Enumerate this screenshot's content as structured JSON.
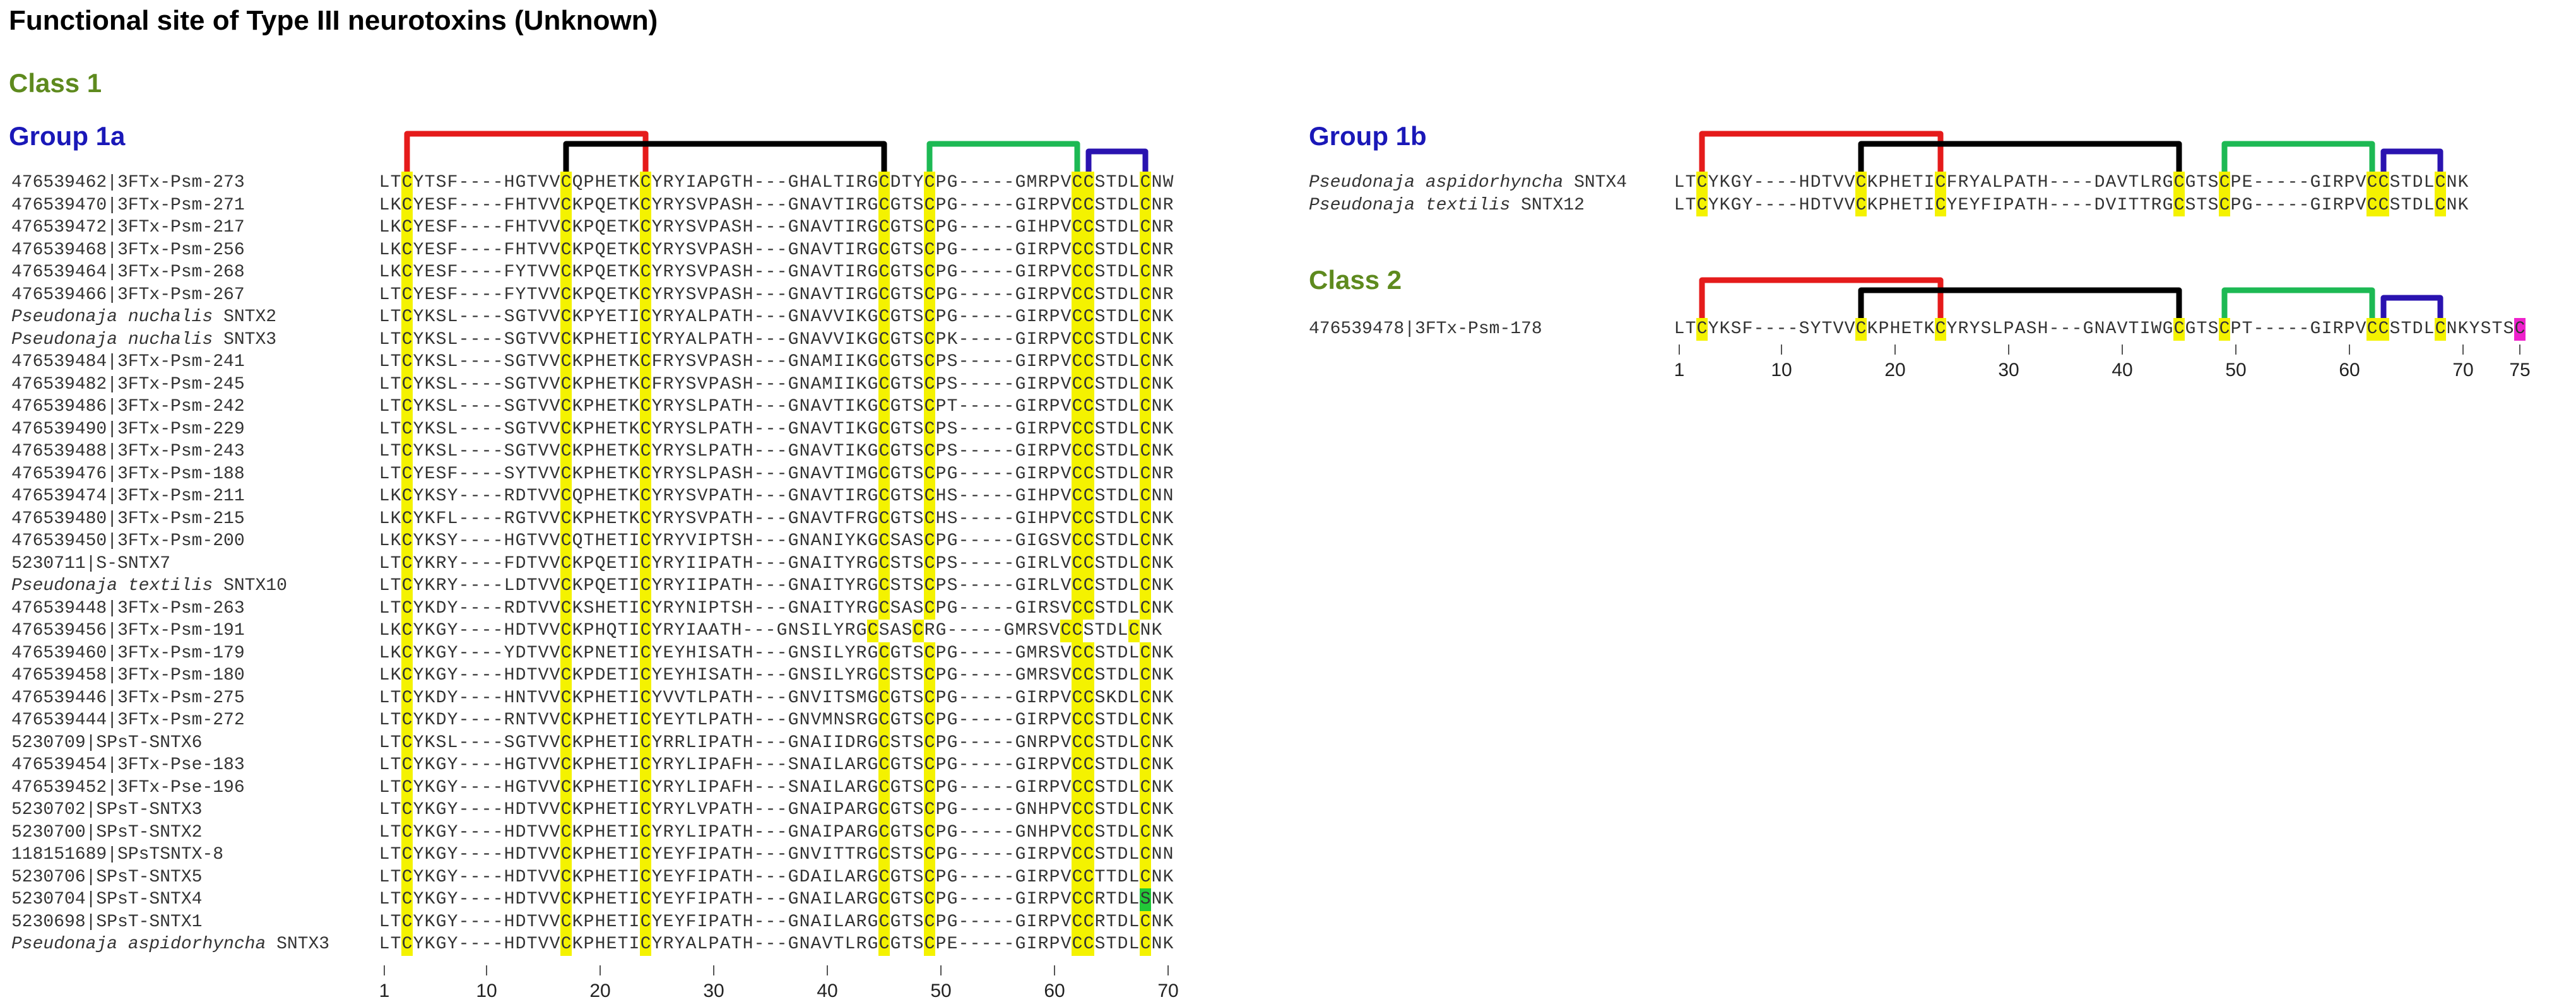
{
  "title": "Functional site of Type III neurotoxins (Unknown)",
  "class1_label": "Class 1",
  "class2_label": "Class 2",
  "group1a": {
    "label": "Group 1a",
    "rows": [
      {
        "id": "476539462|3FTx-Psm-273",
        "seq": "LTCYTSF----HGTVVCQPHETKCYRYIAPGTH---GHALTIRGCDTYCPG-----GMRPVCCSTDLCNW"
      },
      {
        "id": "476539470|3FTx-Psm-271",
        "seq": "LKCYESF----FHTVVCKPQETKCYRYSVPASH---GNAVTIRGCGTSCPG-----GIRPVCCSTDLCNR"
      },
      {
        "id": "476539472|3FTx-Psm-217",
        "seq": "LKCYESF----FHTVVCKPQETKCYRYSVPASH---GNAVTIRGCGTSCPG-----GIHPVCCSTDLCNR"
      },
      {
        "id": "476539468|3FTx-Psm-256",
        "seq": "LKCYESF----FHTVVCKPQETKCYRYSVPASH---GNAVTIRGCGTSCPG-----GIRPVCCSTDLCNR"
      },
      {
        "id": "476539464|3FTx-Psm-268",
        "seq": "LKCYESF----FYTVVCKPQETKCYRYSVPASH---GNAVTIRGCGTSCPG-----GIRPVCCSTDLCNR"
      },
      {
        "id": "476539466|3FTx-Psm-267",
        "seq": "LTCYESF----FYTVVCKPQETKCYRYSVPASH---GNAVTIRGCGTSCPG-----GIRPVCCSTDLCNR"
      },
      {
        "id": "Pseudonaja nuchalis SNTX2",
        "italic": "Pseudonaja nuchalis",
        "suffix": " SNTX2",
        "seq": "LTCYKSL----SGTVVCKPYETICYRYALPATH---GNAVVIKGCGTSCPG-----GIRPVCCSTDLCNK"
      },
      {
        "id": "Pseudonaja nuchalis SNTX3",
        "italic": "Pseudonaja nuchalis",
        "suffix": " SNTX3",
        "seq": "LTCYKSL----SGTVVCKPHETICYRYALPATH---GNAVVIKGCGTSCPK-----GIRPVCCSTDLCNK"
      },
      {
        "id": "476539484|3FTx-Psm-241",
        "seq": "LTCYKSL----SGTVVCKPHETKCFRYSVPASH---GNAMIIKGCGTSCPS-----GIRPVCCSTDLCNK"
      },
      {
        "id": "476539482|3FTx-Psm-245",
        "seq": "LTCYKSL----SGTVVCKPHETKCFRYSVPASH---GNAMIIKGCGTSCPS-----GIRPVCCSTDLCNK"
      },
      {
        "id": "476539486|3FTx-Psm-242",
        "seq": "LTCYKSL----SGTVVCKPHETKCYRYSLPATH---GNAVTIKGCGTSCPT-----GIRPVCCSTDLCNK"
      },
      {
        "id": "476539490|3FTx-Psm-229",
        "seq": "LTCYKSL----SGTVVCKPHETKCYRYSLPATH---GNAVTIKGCGTSCPS-----GIRPVCCSTDLCNK"
      },
      {
        "id": "476539488|3FTx-Psm-243",
        "seq": "LTCYKSL----SGTVVCKPHETKCYRYSLPATH---GNAVTIKGCGTSCPS-----GIRPVCCSTDLCNK"
      },
      {
        "id": "476539476|3FTx-Psm-188",
        "seq": "LTCYESF----SYTVVCKPHETKCYRYSLPASH---GNAVTIMGCGTSCPG-----GIRPVCCSTDLCNR"
      },
      {
        "id": "476539474|3FTx-Psm-211",
        "seq": "LKCYKSY----RDTVVCQPHETKCYRYSVPATH---GNAVTIRGCGTSCHS-----GIHPVCCSTDLCNN"
      },
      {
        "id": "476539480|3FTx-Psm-215",
        "seq": "LKCYKFL----RGTVVCKPHETKCYRYSVPATH---GNAVTFRGCGTSCHS-----GIHPVCCSTDLCNK"
      },
      {
        "id": "476539450|3FTx-Psm-200",
        "seq": "LKCYKSY----HGTVVCQTHETICYRYVIPTSH---GNANIYKGCSASCPG-----GIGSVCCSTDLCNK"
      },
      {
        "id": "5230711|S-SNTX7",
        "seq": "LTCYKRY----FDTVVCKPQETICYRYIIPATH---GNAITYRGCSTSCPS-----GIRLVCCSTDLCNK"
      },
      {
        "id": "Pseudonaja textilis SNTX10",
        "italic": "Pseudonaja textilis",
        "suffix": " SNTX10",
        "seq": "LTCYKRY----LDTVVCKPQETICYRYIIPATH---GNAITYRGCSTSCPS-----GIRLVCCSTDLCNK"
      },
      {
        "id": "476539448|3FTx-Psm-263",
        "seq": "LTCYKDY----RDTVVCKSHETICYRYNIPTSH---GNAITYRGCSASCPG-----GIRSVCCSTDLCNK"
      },
      {
        "id": "476539456|3FTx-Psm-191",
        "seq": "LKCYKGY----HDTVVCKPHQTICYRYIAATH---GNSILYRGCSASCRG-----GMRSVCCSTDLCNK"
      },
      {
        "id": "476539460|3FTx-Psm-179",
        "seq": "LKCYKGY----YDTVVCKPNETICYEYHISATH---GNSILYRGCGTSCPG-----GMRSVCCSTDLCNK"
      },
      {
        "id": "476539458|3FTx-Psm-180",
        "seq": "LKCYKGY----HDTVVCKPDETICYEYHISATH---GNSILYRGCSTSCPG-----GMRSVCCSTDLCNK"
      },
      {
        "id": "476539446|3FTx-Psm-275",
        "seq": "LTCYKDY----HNTVVCKPHETICYVVTLPATH---GNVITSMGCGTSCPG-----GIRPVCCSKDLCNK"
      },
      {
        "id": "476539444|3FTx-Psm-272",
        "seq": "LTCYKDY----RNTVVCKPHETICYEYTLPATH---GNVMNSRGCGTSCPG-----GIRPVCCSTDLCNK"
      },
      {
        "id": "5230709|SPsT-SNTX6",
        "seq": "LTCYKSL----SGTVVCKPHETICYRRLIPATH---GNAIIDRGCSTSCPG-----GNRPVCCSTDLCNK"
      },
      {
        "id": "476539454|3FTx-Pse-183",
        "seq": "LTCYKGY----HGTVVCKPHETICYRYLIPAFH---SNAILARGCGTSCPG-----GIRPVCCSTDLCNK"
      },
      {
        "id": "476539452|3FTx-Pse-196",
        "seq": "LTCYKGY----HGTVVCKPHETICYRYLIPAFH---SNAILARGCGTSCPG-----GIRPVCCSTDLCNK"
      },
      {
        "id": "5230702|SPsT-SNTX3",
        "seq": "LTCYKGY----HDTVVCKPHETICYRYLVPATH---GNAIPARGCGTSCPG-----GNHPVCCSTDLCNK"
      },
      {
        "id": "5230700|SPsT-SNTX2",
        "seq": "LTCYKGY----HDTVVCKPHETICYRYLIPATH---GNAIPARGCGTSCPG-----GNHPVCCSTDLCNK"
      },
      {
        "id": "118151689|SPsTSNTX-8",
        "seq": "LTCYKGY----HDTVVCKPHETICYEYFIPATH---GNVITTRGCSTSCPG-----GIRPVCCSTDLCNN"
      },
      {
        "id": "5230706|SPsT-SNTX5",
        "seq": "LTCYKGY----HDTVVCKPHETICYEYFIPATH---GDAILARGCGTSCPG-----GIRPVCCTTDLCNK"
      },
      {
        "id": "5230704|SPsT-SNTX4",
        "seq": "LTCYKGY----HDTVVCKPHETICYEYFIPATH---GNAILARGCGTSCPG-----GIRPVCCRTDLSNK",
        "green": [
          67
        ]
      },
      {
        "id": "5230698|SPsT-SNTX1",
        "seq": "LTCYKGY----HDTVVCKPHETICYEYFIPATH---GNAILARGCGTSCPG-----GIRPVCCRTDLCNK"
      },
      {
        "id": "Pseudonaja aspidorhyncha SNTX3",
        "italic": "Pseudonaja aspidorhyncha",
        "suffix": " SNTX3",
        "seq": "LTCYKGY----HDTVVCKPHETICYRYALPATH---GNAVTLRGCGTSCPE-----GIRPVCCSTDLCNK"
      }
    ],
    "axis_ticks": [
      "1",
      "10",
      "20",
      "30",
      "40",
      "50",
      "60",
      "70"
    ]
  },
  "group1b": {
    "label": "Group 1b",
    "rows": [
      {
        "id": "Pseudonaja aspidorhyncha SNTX4",
        "italic": "Pseudonaja aspidorhyncha",
        "suffix": " SNTX4",
        "seq": "LTCYKGY----HDTVVCKPHETICFRYALPATH----DAVTLRGCGTSCPE-----GIRPVCCSTDLCNK"
      },
      {
        "id": "Pseudonaja textilis SNTX12",
        "italic": "Pseudonaja textilis",
        "suffix": " SNTX12",
        "seq": "LTCYKGY----HDTVVCKPHETICYEYFIPATH----DVITTRGCSTSCPG-----GIRPVCCSTDLCNK"
      }
    ]
  },
  "class2": {
    "rows": [
      {
        "id": "476539478|3FTx-Psm-178",
        "seq": "LTCYKSF----SYTVVCKPHETKCYRYSLPASH---GNAVTIWGCGTSCPT-----GIRPVCCSTDLCNKYSTSC",
        "magenta": [
          74
        ]
      }
    ],
    "axis_ticks": [
      "1",
      "10",
      "20",
      "30",
      "40",
      "50",
      "60",
      "70",
      "75"
    ]
  },
  "bond_colors": {
    "bond1": "#e51b1b",
    "bond2": "#000000",
    "bond3": "#1db954",
    "bond4": "#2a13b0"
  },
  "highlight_colors": {
    "cysteine": "#f4f200",
    "variant_green": "#22c838",
    "variant_magenta": "#ee22cc"
  }
}
